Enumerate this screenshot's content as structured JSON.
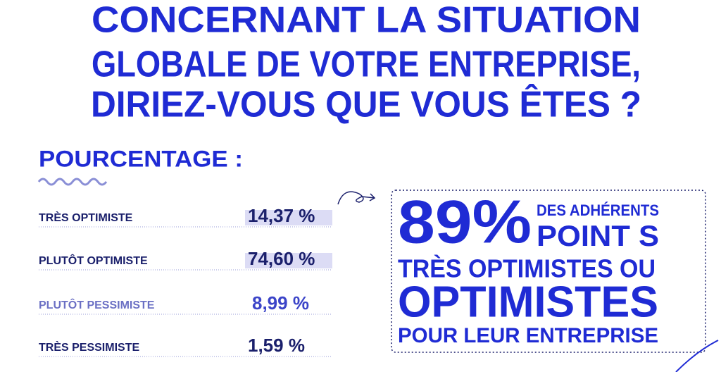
{
  "title": [
    "CONCERNANT LA SITUATION",
    "GLOBALE DE VOTRE ENTREPRISE,",
    "DIRIEZ-VOUS QUE VOUS ÊTES ?"
  ],
  "section_label": "POURCENTAGE :",
  "rows": [
    {
      "label": "TRÈS OPTIMISTE",
      "value": "14,37 %"
    },
    {
      "label": "PLUTÔT OPTIMISTE",
      "value": "74,60 %"
    },
    {
      "label": "PLUTÔT PESSIMISTE",
      "value": "8,99 %"
    },
    {
      "label": "TRÈS PESSIMISTE",
      "value": "1,59 %"
    }
  ],
  "callout": {
    "figure": "89%",
    "lines": [
      "DES ADHÉRENTS",
      "POINT S",
      "TRÈS OPTIMISTES OU",
      "OPTIMISTES",
      "POUR LEUR ENTREPRISE"
    ]
  }
}
